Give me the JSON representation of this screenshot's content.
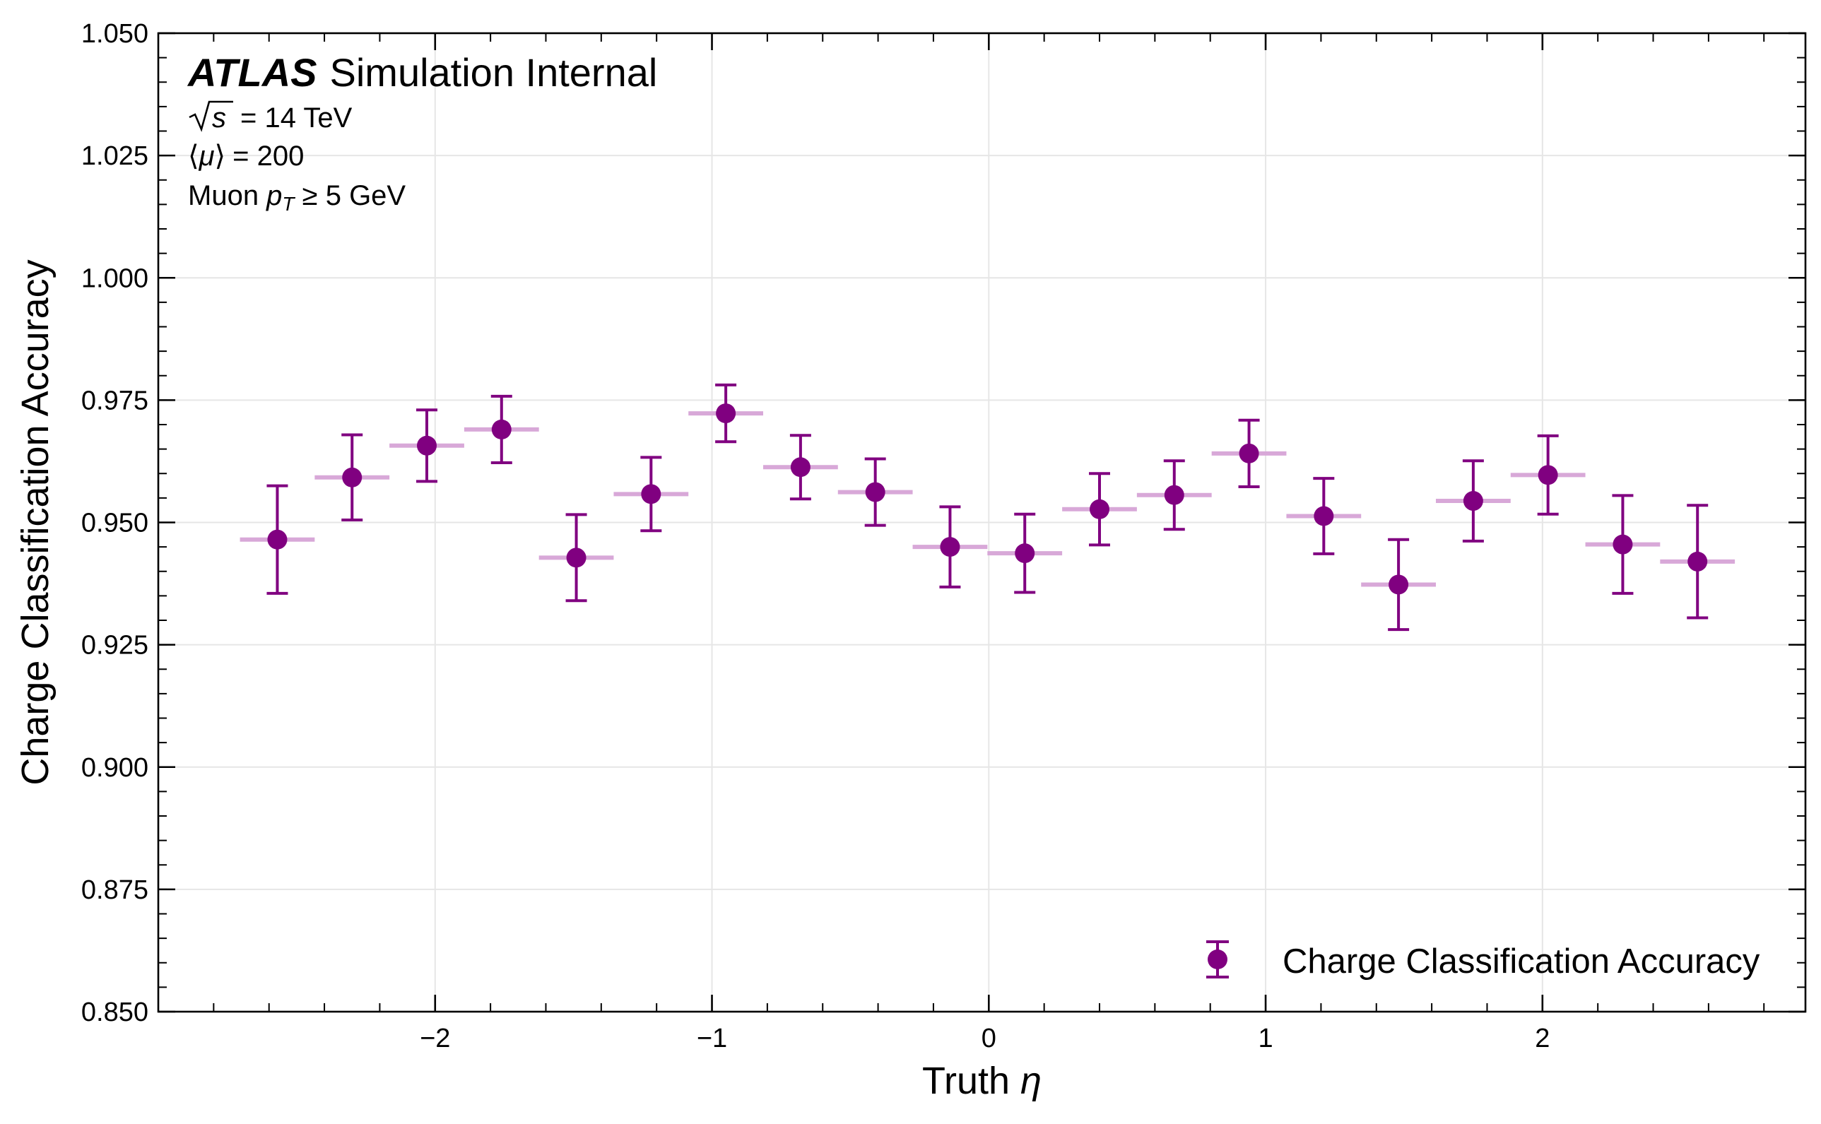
{
  "chart_data": {
    "type": "scatter",
    "title": "",
    "xlabel": "Truth η",
    "xlabel_parts": [
      "Truth ",
      "η"
    ],
    "ylabel": "Charge Classification Accuracy",
    "xlim": [
      -3.0,
      2.95
    ],
    "ylim": [
      0.85,
      1.05
    ],
    "x_ticks": [
      -2,
      -1,
      0,
      1,
      2
    ],
    "x_tick_labels": [
      "−2",
      "−1",
      "0",
      "1",
      "2"
    ],
    "y_ticks": [
      0.85,
      0.875,
      0.9,
      0.925,
      0.95,
      0.975,
      1.0,
      1.025,
      1.05
    ],
    "y_tick_labels": [
      "0.850",
      "0.875",
      "0.900",
      "0.925",
      "0.950",
      "0.975",
      "1.000",
      "1.025",
      "1.050"
    ],
    "grid": true,
    "legend_position": "bottom-right",
    "bin_half_width": 0.135,
    "series": [
      {
        "name": "Charge Classification Accuracy",
        "color": "#800080",
        "bin_color": "#d8a8d8",
        "x": [
          -2.57,
          -2.3,
          -2.03,
          -1.76,
          -1.49,
          -1.22,
          -0.95,
          -0.68,
          -0.41,
          -0.14,
          0.13,
          0.4,
          0.67,
          0.94,
          1.21,
          1.48,
          1.75,
          2.02,
          2.29,
          2.56
        ],
        "y": [
          0.9465,
          0.9592,
          0.9657,
          0.969,
          0.9428,
          0.9558,
          0.9723,
          0.9613,
          0.9562,
          0.945,
          0.9437,
          0.9527,
          0.9556,
          0.9641,
          0.9513,
          0.9373,
          0.9544,
          0.9597,
          0.9455,
          0.942
        ],
        "yerr": [
          0.011,
          0.0087,
          0.0073,
          0.0068,
          0.0088,
          0.0075,
          0.0058,
          0.0065,
          0.0068,
          0.0082,
          0.008,
          0.0073,
          0.007,
          0.0068,
          0.0077,
          0.0092,
          0.0082,
          0.008,
          0.01,
          0.0115
        ]
      }
    ],
    "annotations": {
      "experiment": "ATLAS",
      "status": "Simulation Internal",
      "sqrt_s_symbol": "s",
      "sqrt_s_value": "= 14 TeV",
      "mu_label": "⟨",
      "mu_symbol": "μ",
      "mu_close": "⟩",
      "mu_value": "= 200",
      "cut_prefix": "Muon ",
      "cut_var": "p",
      "cut_sub": "T",
      "cut_value": " ≥ 5 GeV"
    }
  }
}
